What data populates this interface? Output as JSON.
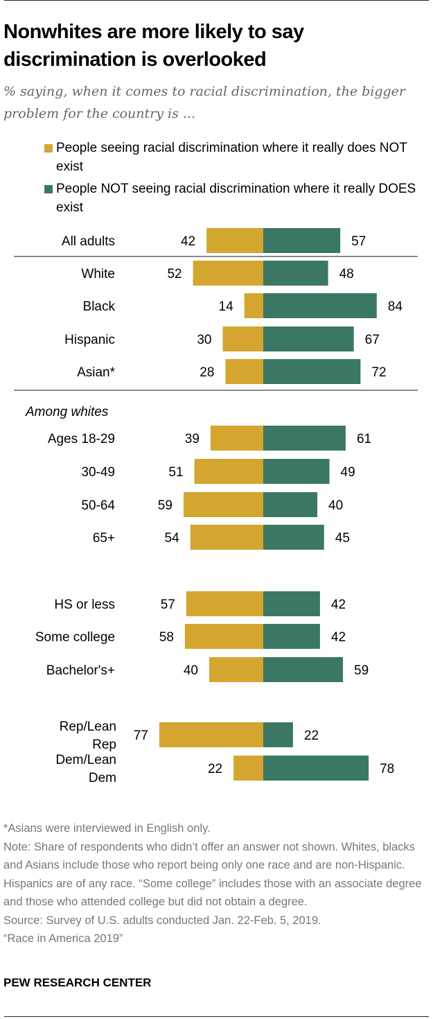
{
  "title": "Nonwhites are more likely to say discrimination is overlooked",
  "subtitle": "% saying, when it comes to racial discrimination, the bigger problem for the country is ...",
  "colors": {
    "gold": "#D4A52F",
    "green": "#3A7765",
    "note_gray": "#777777"
  },
  "chart_data": {
    "type": "bar",
    "orientation": "horizontal-diverging",
    "legend": [
      {
        "name": "People seeing racial discrimination where it really does NOT exist",
        "color": "#D4A52F"
      },
      {
        "name": "People NOT seeing racial discrimination where it really DOES exist",
        "color": "#3A7765"
      }
    ],
    "group_labels": {
      "whites": "Among whites"
    },
    "categories": [
      "All adults",
      "White",
      "Black",
      "Hispanic",
      "Asian*",
      "Ages 18-29",
      "30-49",
      "50-64",
      "65+",
      "HS or less",
      "Some college",
      "Bachelor's+",
      "Rep/Lean Rep",
      "Dem/Lean Dem"
    ],
    "series": [
      {
        "name": "People seeing racial discrimination where it really does NOT exist",
        "values": [
          42,
          52,
          14,
          30,
          28,
          39,
          51,
          59,
          54,
          57,
          58,
          40,
          77,
          22
        ]
      },
      {
        "name": "People NOT seeing racial discrimination where it really DOES exist",
        "values": [
          57,
          48,
          84,
          67,
          72,
          61,
          49,
          40,
          45,
          42,
          42,
          59,
          22,
          78
        ]
      }
    ]
  },
  "notes": [
    "*Asians were interviewed in English only.",
    "Note: Share of respondents who didn’t offer an answer not shown. Whites, blacks and Asians include those who report being only one race and are non-Hispanic. Hispanics are of any race. “Some college” includes those with an associate degree and those who attended college but did not obtain a degree.",
    "Source: Survey of U.S. adults conducted Jan. 22-Feb. 5, 2019.",
    "“Race in America 2019”"
  ],
  "brand": "PEW RESEARCH CENTER"
}
